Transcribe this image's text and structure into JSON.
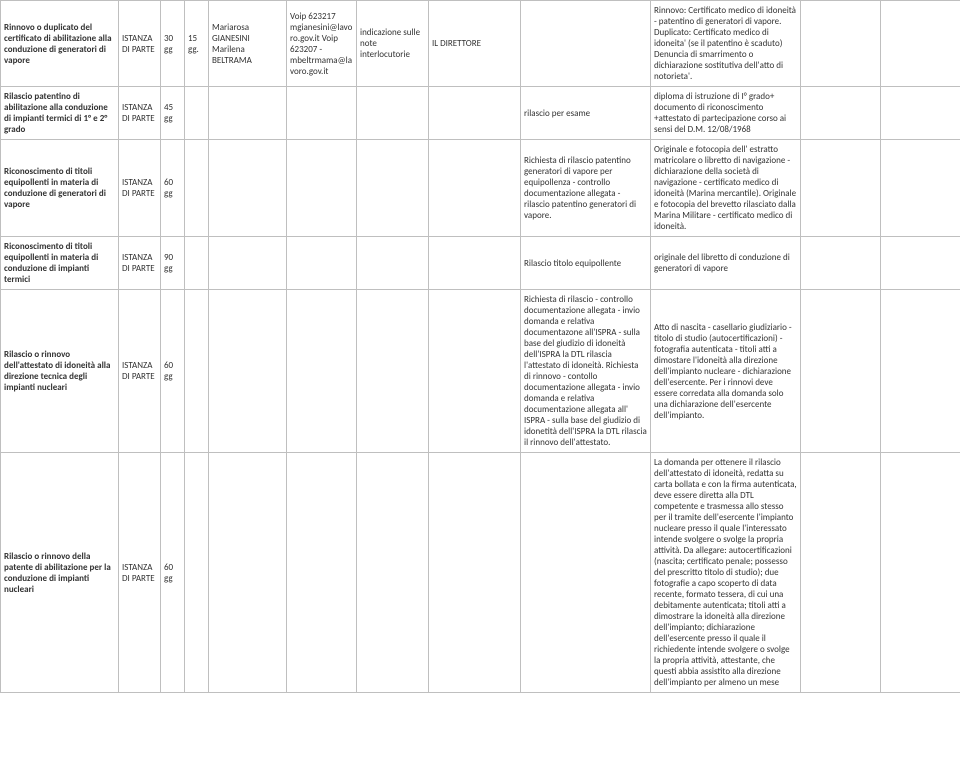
{
  "table": {
    "rows": [
      {
        "c0": "Rinnovo o duplicato del certificato di abilitazione alla conduzione di generatori di vapore",
        "c1": "ISTANZA DI PARTE",
        "c2": "30 gg",
        "c3": "15 gg.",
        "c4": "Mariarosa GIANESINI Marilena BELTRAMA",
        "c5": "Voip 623217 mgianesini@lavoro.gov.it     Voip 623207 - mbeltrmama@lavoro.gov.it",
        "c6": "indicazione sulle note interlocutorie",
        "c7": "IL DIRETTORE",
        "c8": "",
        "c9": "Rinnovo: Certificato medico di idoneità - patentino di generatori di vapore.   Duplicato:        Certificato medico di idoneita' (se il patentino è scaduto) Denuncia di smarrimento o dichiarazione sostitutiva dell'atto di notorieta'.",
        "c10": "",
        "c11": ""
      },
      {
        "c0": "Rilascio patentino di abilitazione alla conduzione di impianti termici di 1° e 2° grado",
        "c1": "ISTANZA DI PARTE",
        "c2": "45 gg",
        "c3": "",
        "c4": "",
        "c5": "",
        "c6": "",
        "c7": "",
        "c8": "rilascio per esame",
        "c9": "diploma di istruzione di I° grado+ documento di riconoscimento +attestato di partecipazione corso ai sensi del D.M. 12/08/1968",
        "c10": "",
        "c11": ""
      },
      {
        "c0": "Riconoscimento di titoli equipollenti in materia di conduzione di generatori di vapore",
        "c1": "ISTANZA DI PARTE",
        "c2": "60 gg",
        "c3": "",
        "c4": "",
        "c5": "",
        "c6": "",
        "c7": "",
        "c8": "Richiesta di rilascio patentino generatori di vapore per equipollenza - controllo documentazione allegata - rilascio patentino generatori di vapore.",
        "c9": "Originale e fotocopia dell' estratto matricolare o libretto di navigazione - dichiarazione della società di navigazione - certificato medico di idoneità (Marina mercantile). Originale e fotocopia del brevetto rilasciato dalla Marina Militare - certificato medico di idoneità.",
        "c10": "",
        "c11": ""
      },
      {
        "c0": "Riconoscimento di titoli equipollenti in materia di conduzione di impianti termici",
        "c1": "ISTANZA DI PARTE",
        "c2": "90 gg",
        "c3": "",
        "c4": "",
        "c5": "",
        "c6": "",
        "c7": "",
        "c8": "Rilascio titolo equipollente",
        "c9": "originale del libretto di conduzione di generatori di vapore",
        "c10": "",
        "c11": ""
      },
      {
        "c0": "Rilascio o rinnovo dell'attestato di idoneità alla direzione tecnica degli impianti nucleari",
        "c1": "ISTANZA DI PARTE",
        "c2": "60 gg",
        "c3": "",
        "c4": "",
        "c5": "",
        "c6": "",
        "c7": "",
        "c8": "Richiesta di rilascio - controllo documentazione allegata - invio domanda e relativa documentazone all'ISPRA -  sulla base del giudizio di idoneità dell'ISPRA la DTL rilascia l'attestato di idoneità.        Richiesta di rinnovo -  contollo documentazione allegata - invio domanda e relativa documentazione allegata all' ISPRA - sulla base del giudizio di idonetità dell'ISPRA la DTL rilascia il rinnovo dell'attestato.",
        "c9": "Atto di nascita - casellario giudiziario - titolo di studio (autocertificazioni) - fotografia autenticata - titoli atti a dimostare l'idoneità alla direzione dell'impianto nucleare - dichiarazione dell'esercente.       Per i rinnovi deve essere corredata alla domanda solo una dichiarazione dell'esercente dell'impianto.",
        "c10": "",
        "c11": ""
      },
      {
        "c0": "Rilascio o rinnovo della patente di abilitazione per la conduzione di impianti nucleari",
        "c1": "ISTANZA DI PARTE",
        "c2": "60 gg",
        "c3": "",
        "c4": "",
        "c5": "",
        "c6": "",
        "c7": "",
        "c8": "",
        "c9": "La domanda per ottenere il rilascio dell'attestato di idoneità, redatta su carta bollata e con la firma autenticata, deve essere diretta alla DTL competente e trasmessa allo stesso per il tramite dell'esercente l'impianto nucleare presso il quale l'interessato intende svolgere o svolge la propria attività. Da allegare: autocertificazioni (nascita; certificato penale; possesso del prescritto titolo di studio);  due fotografie a capo scoperto di data recente, formato tessera, di cui una debitamente autenticata; titoli atti a dimostrare la idoneità alla direzione dell'impianto; dichiarazione dell'esercente presso il quale il richiedente intende svolgere o svolge la propria attività, attestante, che questi abbia assistito alla direzione dell'impianto per almeno un mese",
        "c10": "",
        "c11": ""
      }
    ]
  }
}
